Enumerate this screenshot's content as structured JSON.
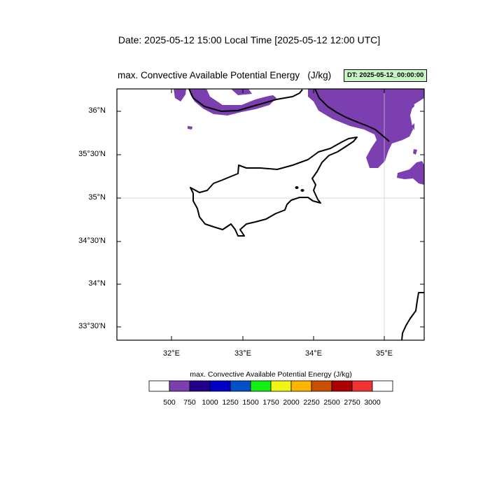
{
  "header": {
    "date_line": "Date: 2025-05-12  15:00 Local Time [2025-05-12  12:00 UTC]"
  },
  "map": {
    "title": "max. Convective Available Potential Energy   (J/kg)",
    "dt_badge": "DT: 2025-05-12_00:00:00",
    "lat_labels": [
      "36°N",
      "35°30'N",
      "35°N",
      "34°30'N",
      "34°N",
      "33°30'N"
    ],
    "lon_labels": [
      "32°E",
      "33°E",
      "34°E",
      "35°E"
    ],
    "region": "Cyprus",
    "fill_color": "#7b3fb0"
  },
  "colorbar": {
    "title": "max. Convective Available Potential Energy  (J/kg)",
    "labels": [
      "500",
      "750",
      "1000",
      "1250",
      "1500",
      "1750",
      "2000",
      "2250",
      "2500",
      "2750",
      "3000"
    ],
    "colors": [
      "#ffffff",
      "#7b3fb0",
      "#23008c",
      "#0000c8",
      "#0050c8",
      "#14f014",
      "#f0f514",
      "#ffb400",
      "#c85000",
      "#aa0000",
      "#f03232",
      "#ffffff"
    ]
  }
}
